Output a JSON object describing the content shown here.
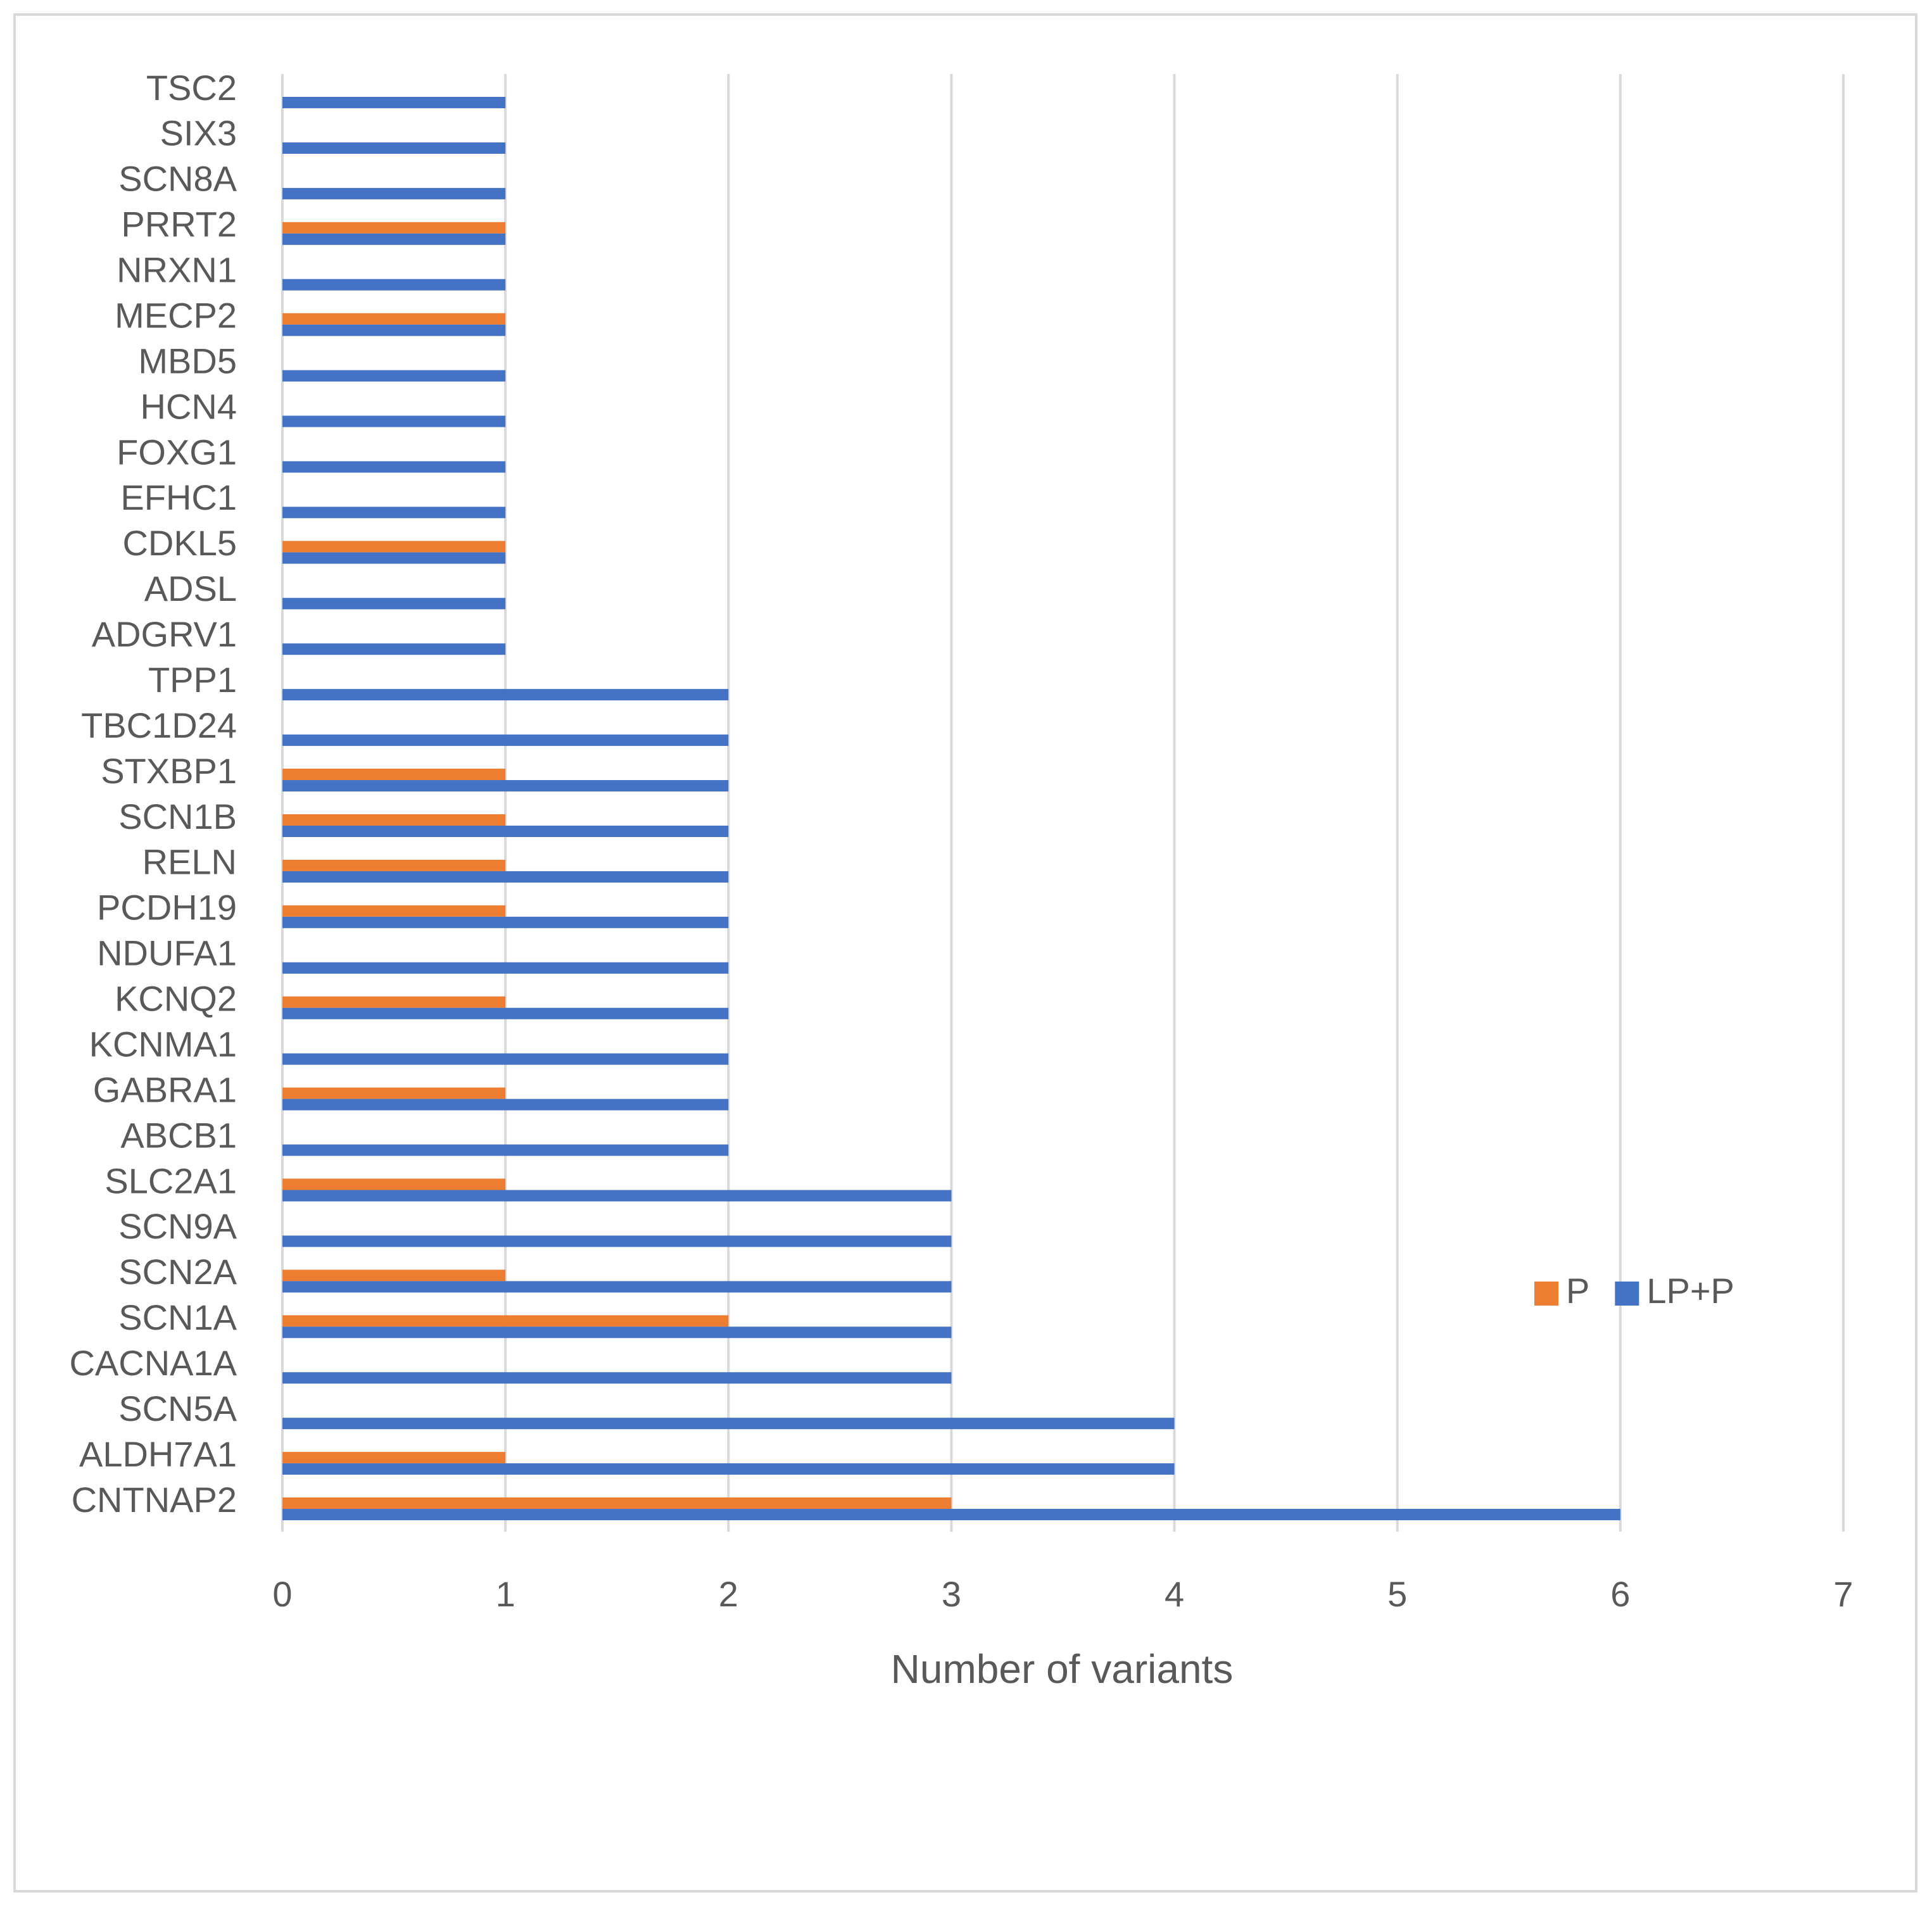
{
  "chart_data": {
    "type": "hbar",
    "xlabel": "Number of variants",
    "categories": [
      "TSC2",
      "SIX3",
      "SCN8A",
      "PRRT2",
      "NRXN1",
      "MECP2",
      "MBD5",
      "HCN4",
      "FOXG1",
      "EFHC1",
      "CDKL5",
      "ADSL",
      "ADGRV1",
      "TPP1",
      "TBC1D24",
      "STXBP1",
      "SCN1B",
      "RELN",
      "PCDH19",
      "NDUFA1",
      "KCNQ2",
      "KCNMA1",
      "GABRA1",
      "ABCB1",
      "SLC2A1",
      "SCN9A",
      "SCN2A",
      "SCN1A",
      "CACNA1A",
      "SCN5A",
      "ALDH7A1",
      "CNTNAP2"
    ],
    "series": [
      {
        "name": "P",
        "color": "#ed7d31",
        "values": [
          0,
          0,
          0,
          1,
          0,
          1,
          0,
          0,
          0,
          0,
          1,
          0,
          0,
          0,
          0,
          1,
          1,
          1,
          1,
          0,
          1,
          0,
          1,
          0,
          1,
          0,
          1,
          2,
          0,
          0,
          1,
          3
        ]
      },
      {
        "name": "LP+P",
        "color": "#4472c4",
        "values": [
          1,
          1,
          1,
          1,
          1,
          1,
          1,
          1,
          1,
          1,
          1,
          1,
          1,
          2,
          2,
          2,
          2,
          2,
          2,
          2,
          2,
          2,
          2,
          2,
          3,
          3,
          3,
          3,
          3,
          4,
          4,
          6
        ]
      }
    ],
    "xlim": [
      0,
      7
    ],
    "xticks": [
      0,
      1,
      2,
      3,
      4,
      5,
      6,
      7
    ],
    "grid": true,
    "legend": "right"
  }
}
